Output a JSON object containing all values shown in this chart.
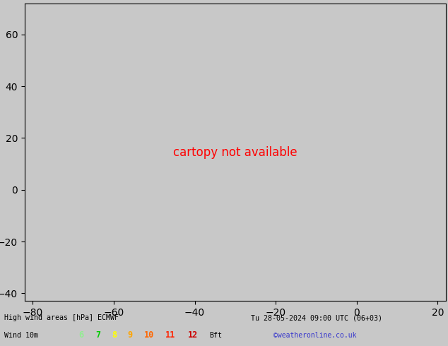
{
  "title_line1": "High wind areas [hPa] ECMWF",
  "title_line2": "Tu 28-05-2024 09:00 UTC (06+03)",
  "subtitle": "Wind 10m",
  "legend_values": [
    "6",
    "7",
    "8",
    "9",
    "10",
    "11",
    "12"
  ],
  "legend_colors": [
    "#90ee90",
    "#00cc00",
    "#ffff00",
    "#ffa500",
    "#ff6600",
    "#ff2200",
    "#cc0000"
  ],
  "legend_suffix": "Bft",
  "credit": "©weatheronline.co.uk",
  "bg_color": "#c8c8c8",
  "ocean_color": "#c8c8c8",
  "land_color": "#b0b0b0",
  "grid_color": "#aaaaaa",
  "contour_red": "#dd0000",
  "contour_black": "#000000",
  "contour_blue": "#0000cc",
  "fill_green": "#b8ddb8",
  "figsize": [
    6.34,
    4.9
  ],
  "dpi": 100,
  "extent": [
    -82,
    22,
    -43,
    72
  ]
}
